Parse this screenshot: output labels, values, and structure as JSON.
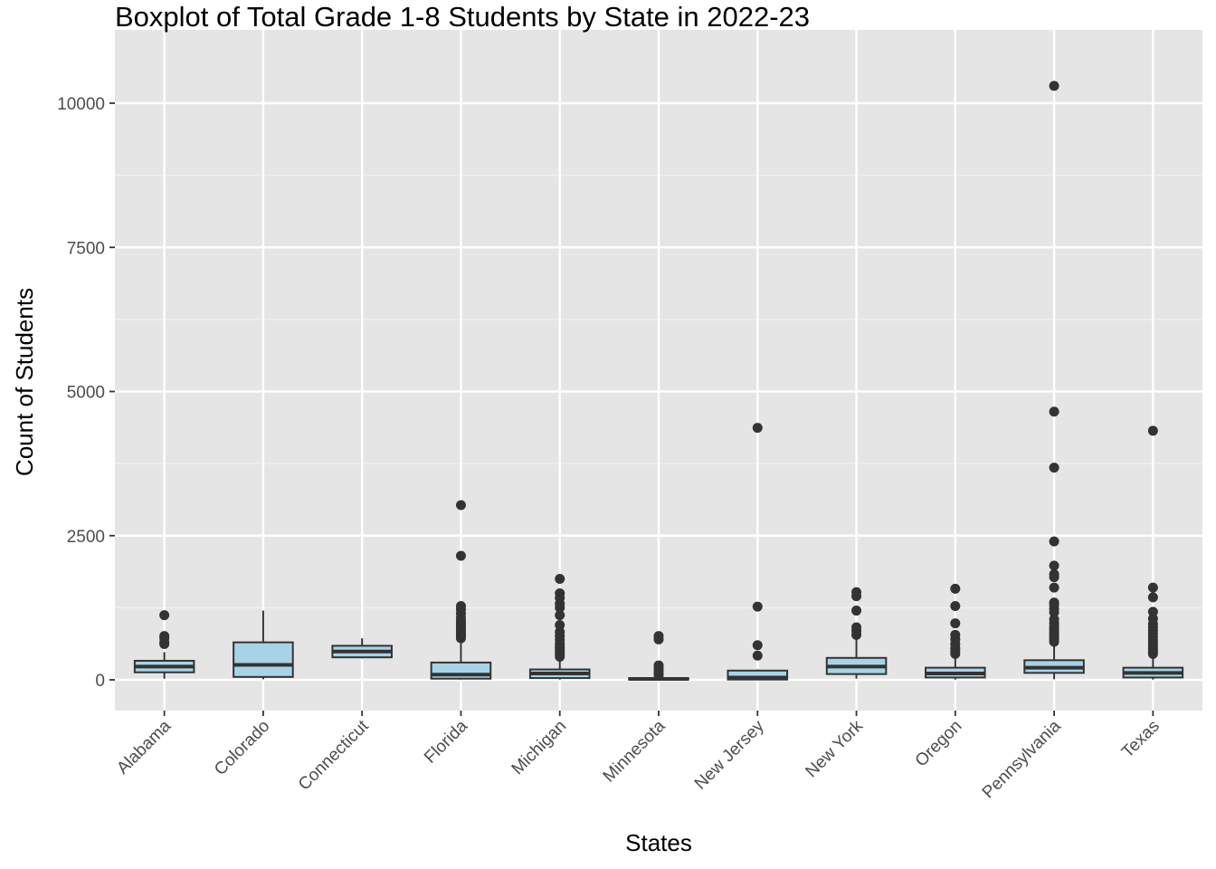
{
  "chart_data": {
    "type": "boxplot",
    "title": "Boxplot of Total Grade 1-8 Students by State in 2022-23",
    "xlabel": "States",
    "ylabel": "Count of Students",
    "ylim": [
      -550,
      10800
    ],
    "yticks": [
      0,
      2500,
      5000,
      7500,
      10000
    ],
    "grid": true,
    "box_fill": "#a6d4e6",
    "panel_background": "#e5e5e5",
    "categories": [
      "Alabama",
      "Colorado",
      "Connecticut",
      "Florida",
      "Michigan",
      "Minnesota",
      "New Jersey",
      "New York",
      "Oregon",
      "Pennsylvania",
      "Texas"
    ],
    "boxes": [
      {
        "state": "Alabama",
        "whisker_low": 20,
        "q1": 130,
        "median": 230,
        "q3": 330,
        "whisker_high": 480,
        "outliers": [
          620,
          650,
          720,
          760,
          1120
        ]
      },
      {
        "state": "Colorado",
        "whisker_low": 10,
        "q1": 50,
        "median": 260,
        "q3": 650,
        "whisker_high": 1200,
        "outliers": []
      },
      {
        "state": "Connecticut",
        "whisker_low": 370,
        "q1": 390,
        "median": 490,
        "q3": 590,
        "whisker_high": 720,
        "outliers": []
      },
      {
        "state": "Florida",
        "whisker_low": 5,
        "q1": 20,
        "median": 90,
        "q3": 300,
        "whisker_high": 680,
        "outliers": [
          720,
          760,
          790,
          830,
          860,
          900,
          940,
          980,
          1020,
          1080,
          1150,
          1220,
          1280,
          2150,
          3030
        ]
      },
      {
        "state": "Michigan",
        "whisker_low": 5,
        "q1": 30,
        "median": 110,
        "q3": 180,
        "whisker_high": 380,
        "outliers": [
          400,
          440,
          480,
          520,
          570,
          620,
          690,
          760,
          830,
          950,
          1120,
          1250,
          1320,
          1420,
          1500,
          1750
        ]
      },
      {
        "state": "Minnesota",
        "whisker_low": 0,
        "q1": 5,
        "median": 15,
        "q3": 30,
        "whisker_high": 60,
        "outliers": [
          80,
          110,
          150,
          200,
          250,
          700,
          760
        ]
      },
      {
        "state": "New Jersey",
        "whisker_low": 0,
        "q1": 5,
        "median": 40,
        "q3": 160,
        "whisker_high": 180,
        "outliers": [
          420,
          600,
          1270,
          4370
        ]
      },
      {
        "state": "New York",
        "whisker_low": 20,
        "q1": 100,
        "median": 230,
        "q3": 380,
        "whisker_high": 700,
        "outliers": [
          780,
          850,
          910,
          1200,
          1450,
          1520
        ]
      },
      {
        "state": "Oregon",
        "whisker_low": 5,
        "q1": 40,
        "median": 110,
        "q3": 210,
        "whisker_high": 420,
        "outliers": [
          450,
          500,
          550,
          620,
          700,
          780,
          980,
          1280,
          1580
        ]
      },
      {
        "state": "Pennsylvania",
        "whisker_low": 10,
        "q1": 120,
        "median": 210,
        "q3": 340,
        "whisker_high": 620,
        "outliers": [
          660,
          700,
          740,
          780,
          820,
          870,
          920,
          980,
          1050,
          1170,
          1230,
          1300,
          1340,
          1600,
          1780,
          1830,
          1980,
          2400,
          3680,
          4650,
          10300
        ]
      },
      {
        "state": "Texas",
        "whisker_low": 5,
        "q1": 40,
        "median": 120,
        "q3": 210,
        "whisker_high": 420,
        "outliers": [
          450,
          490,
          530,
          580,
          630,
          680,
          740,
          800,
          860,
          910,
          970,
          1060,
          1180,
          1430,
          1600,
          4320
        ]
      }
    ]
  }
}
